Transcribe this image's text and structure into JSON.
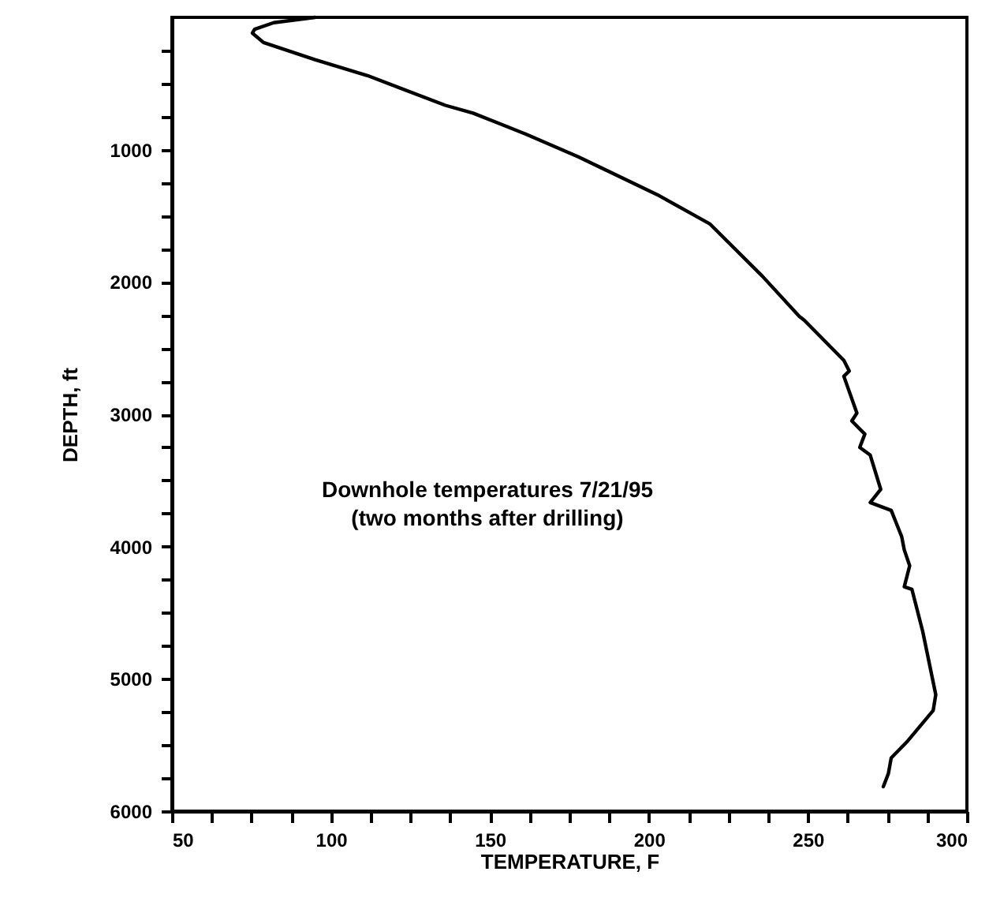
{
  "chart_data": {
    "type": "line",
    "xlabel": "TEMPERATURE, F",
    "ylabel": "DEPTH, ft",
    "annotations": [
      "Downhole temperatures 7/21/95",
      "(two months after drilling)"
    ],
    "xlim": [
      50,
      300
    ],
    "ylim": [
      6000,
      0
    ],
    "xticks": [
      50,
      {
        "value": 62.5,
        "label": null
      },
      {
        "value": 75,
        "label": null
      },
      {
        "value": 87.5,
        "label": null
      },
      100,
      {
        "value": 112.5,
        "label": null
      },
      {
        "value": 125,
        "label": null
      },
      {
        "value": 137.5,
        "label": null
      },
      150,
      {
        "value": 162.5,
        "label": null
      },
      {
        "value": 175,
        "label": null
      },
      {
        "value": 187.5,
        "label": null
      },
      200,
      {
        "value": 212.5,
        "label": null
      },
      {
        "value": 225,
        "label": null
      },
      {
        "value": 237.5,
        "label": null
      },
      250,
      {
        "value": 262.5,
        "label": null
      },
      {
        "value": 275,
        "label": null
      },
      {
        "value": 287.5,
        "label": null
      },
      300
    ],
    "yticks": [
      {
        "value": 250,
        "label": null
      },
      {
        "value": 500,
        "label": null
      },
      {
        "value": 750,
        "label": null
      },
      1000,
      {
        "value": 1250,
        "label": null
      },
      {
        "value": 1500,
        "label": null
      },
      {
        "value": 1750,
        "label": null
      },
      2000,
      {
        "value": 2250,
        "label": null
      },
      {
        "value": 2500,
        "label": null
      },
      {
        "value": 2750,
        "label": null
      },
      3000,
      {
        "value": 3250,
        "label": null
      },
      {
        "value": 3500,
        "label": null
      },
      {
        "value": 3750,
        "label": null
      },
      4000,
      {
        "value": 4250,
        "label": null
      },
      {
        "value": 4500,
        "label": null
      },
      {
        "value": 4750,
        "label": null
      },
      5000,
      {
        "value": 5250,
        "label": null
      },
      {
        "value": 5500,
        "label": null
      },
      {
        "value": 5750,
        "label": null
      },
      6000
    ],
    "series": [
      {
        "color": "#000000",
        "x": [
          95,
          82,
          76,
          75.3,
          78.8,
          95,
          111.5,
          136,
          144.7,
          153.7,
          161.3,
          177.8,
          202.6,
          219.1,
          235.7,
          247.3,
          248.9,
          261.3,
          263,
          261.3,
          265.4,
          263.8,
          267.9,
          266.3,
          269.6,
          272.9,
          269.6,
          276.2,
          279.5,
          280.3,
          282,
          280.3,
          282.7,
          286.1,
          290.2,
          289.4,
          281.1,
          276.2,
          275.3,
          273.7
        ],
        "values": [
          0,
          40,
          90,
          119,
          190,
          320,
          440,
          665,
          724,
          810,
          883,
          1054,
          1340,
          1560,
          1957,
          2260,
          2290,
          2593,
          2673,
          2713,
          2991,
          3051,
          3150,
          3250,
          3309,
          3568,
          3667,
          3727,
          3926,
          4025,
          4145,
          4304,
          4323,
          4642,
          5119,
          5239,
          5477,
          5597,
          5716,
          5815
        ]
      }
    ]
  }
}
